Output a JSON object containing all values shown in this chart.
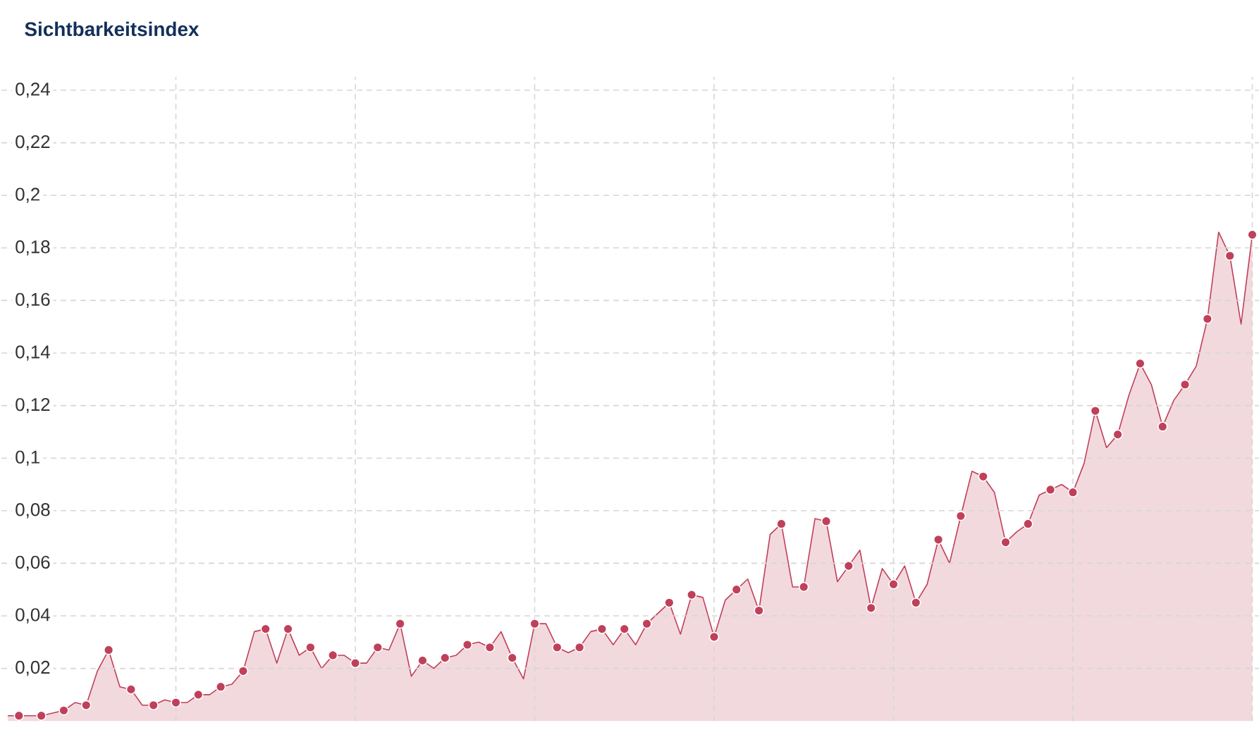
{
  "chart_data": {
    "type": "area",
    "title": "Sichtbarkeitsindex",
    "categories": [
      null,
      null,
      null,
      null,
      null,
      null,
      null,
      null,
      null,
      null,
      null,
      null,
      null,
      null,
      null,
      null,
      null,
      null,
      null,
      null,
      null,
      null,
      null,
      null,
      null,
      null,
      null,
      null,
      null,
      null,
      null,
      null,
      null,
      null,
      null,
      null,
      null,
      null,
      null,
      null,
      null,
      null,
      null,
      null,
      null,
      null,
      null,
      null,
      null,
      null,
      null,
      null,
      null,
      null,
      null,
      null,
      null,
      null,
      null,
      null,
      null,
      null,
      null,
      null,
      null,
      null,
      null,
      null,
      null,
      null,
      null,
      null,
      null,
      null,
      null,
      null,
      null,
      null,
      null,
      null,
      null,
      null,
      null,
      null,
      null,
      null,
      null,
      null,
      null,
      null,
      null,
      null,
      null,
      null,
      null,
      null,
      null,
      null,
      null,
      null,
      null,
      null,
      null,
      null,
      null,
      null,
      null,
      null,
      null,
      null,
      null,
      null
    ],
    "values": [
      0.002,
      0.002,
      0.002,
      0.002,
      0.003,
      0.004,
      0.007,
      0.006,
      0.019,
      0.027,
      0.013,
      0.012,
      0.006,
      0.006,
      0.008,
      0.007,
      0.007,
      0.01,
      0.01,
      0.013,
      0.014,
      0.019,
      0.034,
      0.035,
      0.022,
      0.035,
      0.025,
      0.028,
      0.02,
      0.025,
      0.025,
      0.022,
      0.022,
      0.028,
      0.027,
      0.037,
      0.017,
      0.023,
      0.02,
      0.024,
      0.025,
      0.029,
      0.03,
      0.028,
      0.034,
      0.024,
      0.016,
      0.037,
      0.037,
      0.028,
      0.026,
      0.028,
      0.034,
      0.035,
      0.029,
      0.035,
      0.029,
      0.037,
      0.041,
      0.045,
      0.033,
      0.048,
      0.047,
      0.032,
      0.046,
      0.05,
      0.054,
      0.042,
      0.071,
      0.075,
      0.051,
      0.051,
      0.077,
      0.076,
      0.053,
      0.059,
      0.065,
      0.043,
      0.058,
      0.052,
      0.059,
      0.045,
      0.052,
      0.069,
      0.06,
      0.078,
      0.095,
      0.093,
      0.087,
      0.068,
      0.072,
      0.075,
      0.086,
      0.088,
      0.09,
      0.087,
      0.098,
      0.118,
      0.104,
      0.109,
      0.124,
      0.136,
      0.128,
      0.112,
      0.122,
      0.128,
      0.135,
      0.153,
      0.186,
      0.177,
      0.151,
      0.185
    ],
    "color": "#c0405a",
    "ylim": [
      0,
      0.245
    ],
    "yticks": [
      {
        "value": 0.02,
        "label": "0,02"
      },
      {
        "value": 0.04,
        "label": "0,04"
      },
      {
        "value": 0.06,
        "label": "0,06"
      },
      {
        "value": 0.08,
        "label": "0,08"
      },
      {
        "value": 0.1,
        "label": "0,1"
      },
      {
        "value": 0.12,
        "label": "0,12"
      },
      {
        "value": 0.14,
        "label": "0,14"
      },
      {
        "value": 0.16,
        "label": "0,16"
      },
      {
        "value": 0.18,
        "label": "0,18"
      },
      {
        "value": 0.2,
        "label": "0,2"
      },
      {
        "value": 0.22,
        "label": "0,22"
      },
      {
        "value": 0.24,
        "label": "0,24"
      }
    ],
    "grid": true,
    "marker": "circle"
  }
}
